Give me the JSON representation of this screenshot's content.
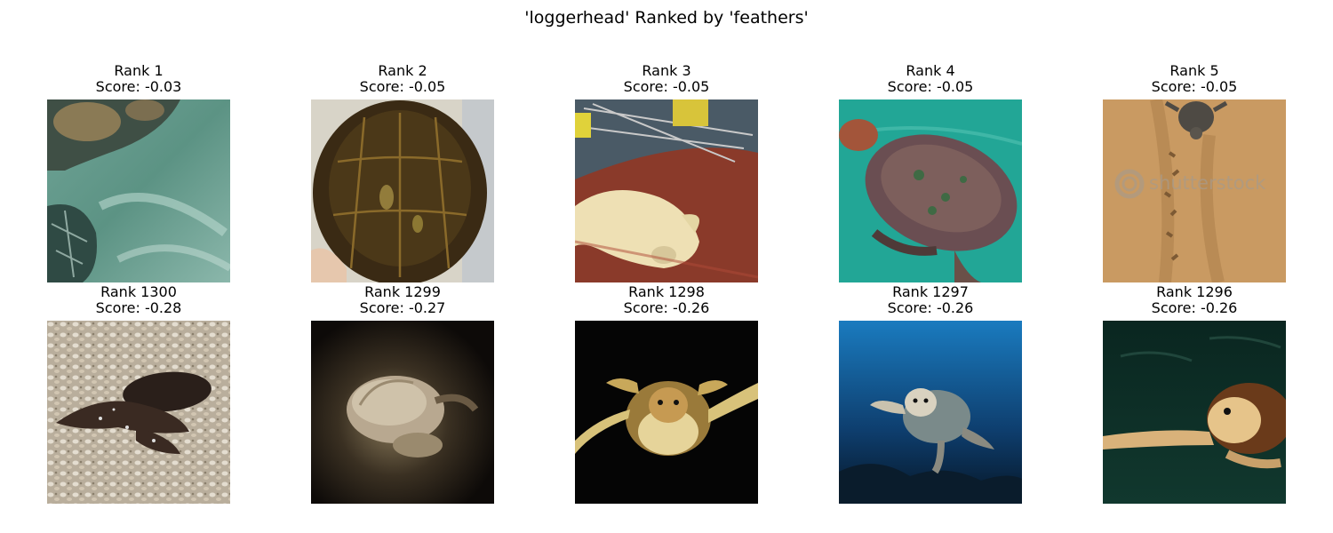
{
  "figure": {
    "title": "'loggerhead' Ranked by 'feathers'"
  },
  "top_row": [
    {
      "rank": "Rank 1",
      "score": "Score: -0.03"
    },
    {
      "rank": "Rank 2",
      "score": "Score: -0.05"
    },
    {
      "rank": "Rank 3",
      "score": "Score: -0.05"
    },
    {
      "rank": "Rank 4",
      "score": "Score: -0.05"
    },
    {
      "rank": "Rank 5",
      "score": "Score: -0.05",
      "watermark": "shutterstock"
    }
  ],
  "bottom_row": [
    {
      "rank": "Rank 1300",
      "score": "Score: -0.28"
    },
    {
      "rank": "Rank 1299",
      "score": "Score: -0.27"
    },
    {
      "rank": "Rank 1298",
      "score": "Score: -0.26"
    },
    {
      "rank": "Rank 1297",
      "score": "Score: -0.26"
    },
    {
      "rank": "Rank 1296",
      "score": "Score: -0.26"
    }
  ]
}
